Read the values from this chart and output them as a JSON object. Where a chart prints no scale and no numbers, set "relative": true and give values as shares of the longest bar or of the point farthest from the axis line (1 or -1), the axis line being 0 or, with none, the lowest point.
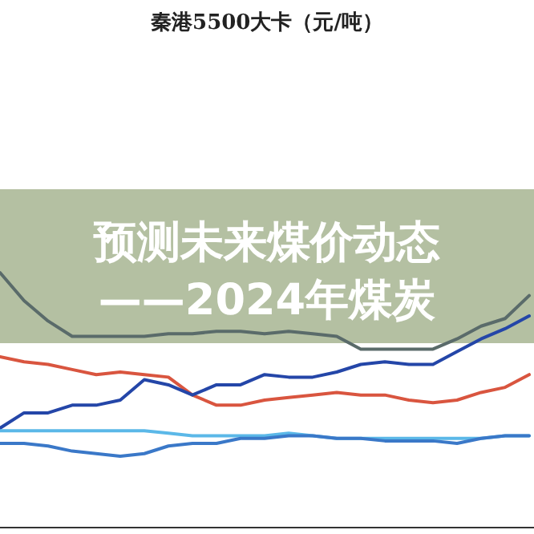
{
  "chart_data": {
    "type": "line",
    "title": "秦港5500大卡（元/吨）",
    "relative": true,
    "annotations": [
      "预测未来煤价动态",
      "——2024年煤炭"
    ],
    "categories": [
      null,
      null,
      null,
      null,
      null,
      null,
      null,
      null,
      null,
      null,
      null,
      null,
      null,
      null,
      null,
      null,
      null,
      null,
      null,
      null,
      null,
      null,
      null
    ],
    "series": [
      {
        "color": "#5a6b6a",
        "values": [
          1.0,
          0.89,
          0.81,
          0.75,
          0.75,
          0.75,
          0.75,
          0.76,
          0.76,
          0.77,
          0.77,
          0.76,
          0.77,
          0.76,
          0.75,
          0.7,
          0.7,
          0.7,
          0.7,
          0.74,
          0.79,
          0.82,
          0.91
        ]
      },
      {
        "color": "#d9553f",
        "values": [
          0.67,
          0.65,
          0.64,
          0.62,
          0.6,
          0.61,
          0.6,
          0.59,
          0.52,
          0.48,
          0.48,
          0.5,
          0.51,
          0.52,
          0.53,
          0.52,
          0.52,
          0.5,
          0.49,
          0.5,
          0.53,
          0.55,
          0.6
        ]
      },
      {
        "color": "#2446a8",
        "values": [
          0.39,
          0.45,
          0.45,
          0.48,
          0.48,
          0.5,
          0.58,
          0.56,
          0.52,
          0.56,
          0.56,
          0.6,
          0.59,
          0.59,
          0.61,
          0.64,
          0.65,
          0.64,
          0.64,
          0.69,
          0.74,
          0.78,
          0.83
        ]
      },
      {
        "color": "#5bb8e8",
        "values": [
          0.38,
          0.38,
          0.38,
          0.38,
          0.38,
          0.38,
          0.38,
          0.37,
          0.36,
          0.36,
          0.36,
          0.36,
          0.37,
          0.36,
          0.35,
          0.35,
          0.35,
          0.35,
          0.35,
          0.35,
          0.35,
          0.36,
          0.36
        ]
      },
      {
        "color": "#3a78c8",
        "values": [
          0.33,
          0.33,
          0.32,
          0.3,
          0.29,
          0.28,
          0.29,
          0.32,
          0.33,
          0.33,
          0.35,
          0.35,
          0.36,
          0.36,
          0.35,
          0.35,
          0.34,
          0.34,
          0.34,
          0.33,
          0.35,
          0.36,
          0.36
        ]
      }
    ]
  }
}
